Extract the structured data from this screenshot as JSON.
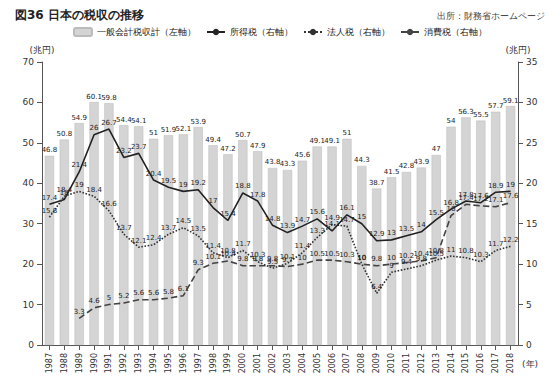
{
  "chart_data": {
    "type": "bar",
    "title": "図36 日本の税収の推移",
    "subtitle": "出所：財務省ホームページ",
    "x_label": "(年)",
    "y_label": "(兆円)",
    "y2_label": "(兆円)",
    "categories": [
      "1987",
      "1988",
      "1989",
      "1990",
      "1991",
      "1992",
      "1993",
      "1994",
      "1995",
      "1996",
      "1997",
      "1998",
      "1999",
      "2000",
      "2001",
      "2002",
      "2003",
      "2004",
      "2005",
      "2006",
      "2007",
      "2008",
      "2009",
      "2010",
      "2011",
      "2012",
      "2013",
      "2014",
      "2015",
      "2016",
      "2017",
      "2018"
    ],
    "ylim": [
      0,
      70
    ],
    "yticks": [
      0,
      10,
      20,
      30,
      40,
      50,
      60,
      70
    ],
    "y2lim": [
      0,
      35
    ],
    "y2ticks": [
      0,
      5,
      10,
      15,
      20,
      25,
      30,
      35
    ],
    "grid": false,
    "legend": "top",
    "data_labels": true,
    "series": [
      {
        "name": "一般会計税収計（左軸）",
        "type": "bar",
        "color": "#d4d4d4",
        "values": [
          46.8,
          50.8,
          54.9,
          60.1,
          59.8,
          54.4,
          54.1,
          51.0,
          51.9,
          52.1,
          53.9,
          49.4,
          47.2,
          50.7,
          47.9,
          43.8,
          43.3,
          45.6,
          49.1,
          49.1,
          51.0,
          44.3,
          38.7,
          41.5,
          42.8,
          43.9,
          47.0,
          54.0,
          56.3,
          55.5,
          57.7,
          59.1
        ]
      },
      {
        "name": "所得税（右軸）",
        "type": "line",
        "axis": "y2",
        "color": "#222222",
        "line_style": "solid",
        "marker": "none",
        "values": [
          17.4,
          18.0,
          21.4,
          26.0,
          26.7,
          23.2,
          23.7,
          20.4,
          19.5,
          19.0,
          19.2,
          17.0,
          15.4,
          18.8,
          17.8,
          14.8,
          13.9,
          14.7,
          15.6,
          14.1,
          16.1,
          15.0,
          12.9,
          13.0,
          13.5,
          14.0,
          15.5,
          16.8,
          17.8,
          17.6,
          18.9,
          19.0
        ]
      },
      {
        "name": "法人税（右軸）",
        "type": "line",
        "axis": "y2",
        "color": "#333333",
        "line_style": "dotted",
        "marker": "none",
        "values": [
          15.8,
          18.4,
          19.0,
          18.4,
          16.6,
          13.7,
          12.1,
          12.4,
          13.7,
          14.5,
          13.5,
          11.4,
          10.8,
          11.7,
          10.3,
          9.5,
          10.1,
          11.4,
          13.3,
          14.9,
          14.7,
          10.0,
          6.4,
          9.0,
          9.4,
          9.8,
          10.5,
          11.0,
          10.8,
          10.3,
          11.7,
          12.2
        ]
      },
      {
        "name": "消費税（右軸）",
        "type": "line",
        "axis": "y2",
        "color": "#444444",
        "line_style": "dashed",
        "marker": "none",
        "values": [
          null,
          null,
          3.3,
          4.6,
          5.0,
          5.2,
          5.6,
          5.6,
          5.8,
          6.1,
          9.3,
          10.1,
          10.4,
          9.8,
          9.8,
          9.8,
          9.7,
          10.0,
          10.5,
          10.5,
          10.3,
          10.0,
          9.8,
          10.0,
          10.2,
          10.4,
          10.8,
          16.0,
          17.4,
          17.2,
          17.1,
          17.6
        ]
      }
    ]
  }
}
